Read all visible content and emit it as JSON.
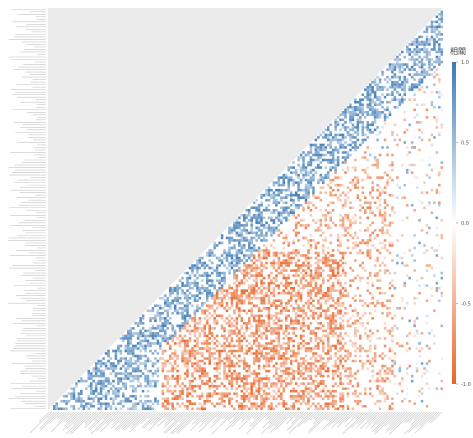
{
  "chart_data": {
    "type": "heatmap",
    "layout": "lower-triangle correlation matrix",
    "variables_count": 160,
    "value_range": [
      -1.0,
      1.0
    ],
    "colorbar": {
      "title": "相關",
      "ticks": [
        {
          "value": 1.0,
          "label": "1.0"
        },
        {
          "value": 0.5,
          "label": "0.5"
        },
        {
          "value": 0.0,
          "label": "0.0"
        },
        {
          "value": -0.5,
          "label": "-0.5"
        },
        {
          "value": -1.0,
          "label": "-1.0"
        }
      ],
      "positive_color": "#3d7ab5",
      "neutral_color": "#ffffff",
      "negative_color": "#e8652a"
    },
    "masked_color": "#ebebeb",
    "grid": false,
    "axis_labels_legible": false,
    "notes_visible_pattern": {
      "upper_triangle": "masked",
      "positive_clusters_near_diagonal": true,
      "negative_block_lower_middle": true
    }
  }
}
